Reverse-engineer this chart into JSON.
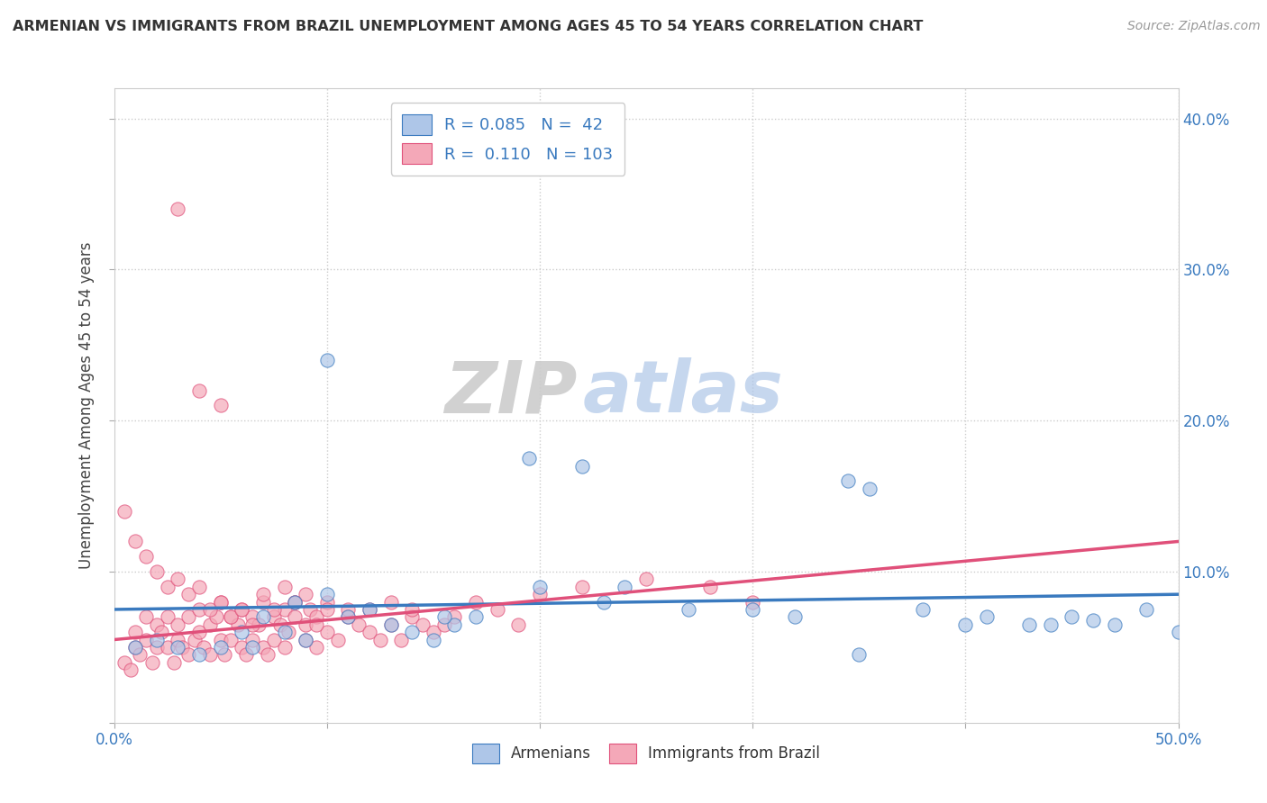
{
  "title": "ARMENIAN VS IMMIGRANTS FROM BRAZIL UNEMPLOYMENT AMONG AGES 45 TO 54 YEARS CORRELATION CHART",
  "source": "Source: ZipAtlas.com",
  "ylabel": "Unemployment Among Ages 45 to 54 years",
  "xlim": [
    0.0,
    0.5
  ],
  "ylim": [
    0.0,
    0.42
  ],
  "xticks": [
    0.0,
    0.1,
    0.2,
    0.3,
    0.4,
    0.5
  ],
  "yticks": [
    0.0,
    0.1,
    0.2,
    0.3,
    0.4
  ],
  "grid_color": "#cccccc",
  "background_color": "#ffffff",
  "armenian_color": "#aec6e8",
  "brazil_color": "#f4a8b8",
  "armenian_line_color": "#3a7abf",
  "brazil_line_color": "#e0507a",
  "watermark_zip": "ZIP",
  "watermark_atlas": "atlas",
  "legend_R_armenian": "0.085",
  "legend_N_armenian": "42",
  "legend_R_brazil": "0.110",
  "legend_N_brazil": "103",
  "arm_trend_x0": 0.0,
  "arm_trend_y0": 0.075,
  "arm_trend_x1": 0.5,
  "arm_trend_y1": 0.085,
  "bra_trend_x0": 0.0,
  "bra_trend_y0": 0.055,
  "bra_trend_x1": 0.5,
  "bra_trend_y1": 0.12,
  "arm_x": [
    0.01,
    0.02,
    0.03,
    0.04,
    0.05,
    0.06,
    0.065,
    0.07,
    0.08,
    0.09,
    0.1,
    0.11,
    0.12,
    0.13,
    0.14,
    0.15,
    0.16,
    0.17,
    0.195,
    0.22,
    0.23,
    0.24,
    0.27,
    0.3,
    0.32,
    0.345,
    0.355,
    0.38,
    0.4,
    0.41,
    0.43,
    0.44,
    0.45,
    0.46,
    0.47,
    0.485,
    0.5,
    0.085,
    0.1,
    0.155,
    0.2,
    0.35
  ],
  "arm_y": [
    0.05,
    0.055,
    0.05,
    0.045,
    0.05,
    0.06,
    0.05,
    0.07,
    0.06,
    0.055,
    0.24,
    0.07,
    0.075,
    0.065,
    0.06,
    0.055,
    0.065,
    0.07,
    0.175,
    0.17,
    0.08,
    0.09,
    0.075,
    0.075,
    0.07,
    0.16,
    0.155,
    0.075,
    0.065,
    0.07,
    0.065,
    0.065,
    0.07,
    0.068,
    0.065,
    0.075,
    0.06,
    0.08,
    0.085,
    0.07,
    0.09,
    0.045
  ],
  "bra_x": [
    0.005,
    0.008,
    0.01,
    0.01,
    0.012,
    0.015,
    0.015,
    0.018,
    0.02,
    0.02,
    0.022,
    0.025,
    0.025,
    0.028,
    0.03,
    0.03,
    0.032,
    0.035,
    0.035,
    0.038,
    0.04,
    0.04,
    0.042,
    0.045,
    0.045,
    0.048,
    0.05,
    0.05,
    0.052,
    0.055,
    0.055,
    0.058,
    0.06,
    0.06,
    0.062,
    0.065,
    0.065,
    0.068,
    0.07,
    0.07,
    0.072,
    0.075,
    0.075,
    0.078,
    0.08,
    0.08,
    0.082,
    0.085,
    0.085,
    0.09,
    0.09,
    0.092,
    0.095,
    0.095,
    0.1,
    0.1,
    0.105,
    0.11,
    0.11,
    0.115,
    0.12,
    0.12,
    0.125,
    0.13,
    0.13,
    0.135,
    0.14,
    0.14,
    0.145,
    0.15,
    0.155,
    0.16,
    0.17,
    0.18,
    0.19,
    0.2,
    0.22,
    0.25,
    0.28,
    0.3,
    0.005,
    0.01,
    0.015,
    0.02,
    0.025,
    0.03,
    0.035,
    0.04,
    0.045,
    0.05,
    0.055,
    0.06,
    0.065,
    0.07,
    0.075,
    0.08,
    0.085,
    0.09,
    0.095,
    0.1,
    0.03,
    0.04,
    0.05
  ],
  "bra_y": [
    0.04,
    0.035,
    0.05,
    0.06,
    0.045,
    0.055,
    0.07,
    0.04,
    0.05,
    0.065,
    0.06,
    0.05,
    0.07,
    0.04,
    0.055,
    0.065,
    0.05,
    0.045,
    0.07,
    0.055,
    0.06,
    0.075,
    0.05,
    0.065,
    0.045,
    0.07,
    0.055,
    0.08,
    0.045,
    0.07,
    0.055,
    0.065,
    0.05,
    0.075,
    0.045,
    0.07,
    0.055,
    0.065,
    0.05,
    0.08,
    0.045,
    0.07,
    0.055,
    0.065,
    0.05,
    0.075,
    0.06,
    0.07,
    0.08,
    0.055,
    0.065,
    0.075,
    0.05,
    0.07,
    0.06,
    0.08,
    0.055,
    0.07,
    0.075,
    0.065,
    0.06,
    0.075,
    0.055,
    0.065,
    0.08,
    0.055,
    0.07,
    0.075,
    0.065,
    0.06,
    0.065,
    0.07,
    0.08,
    0.075,
    0.065,
    0.085,
    0.09,
    0.095,
    0.09,
    0.08,
    0.14,
    0.12,
    0.11,
    0.1,
    0.09,
    0.095,
    0.085,
    0.09,
    0.075,
    0.08,
    0.07,
    0.075,
    0.065,
    0.085,
    0.075,
    0.09,
    0.08,
    0.085,
    0.065,
    0.075,
    0.34,
    0.22,
    0.21
  ]
}
